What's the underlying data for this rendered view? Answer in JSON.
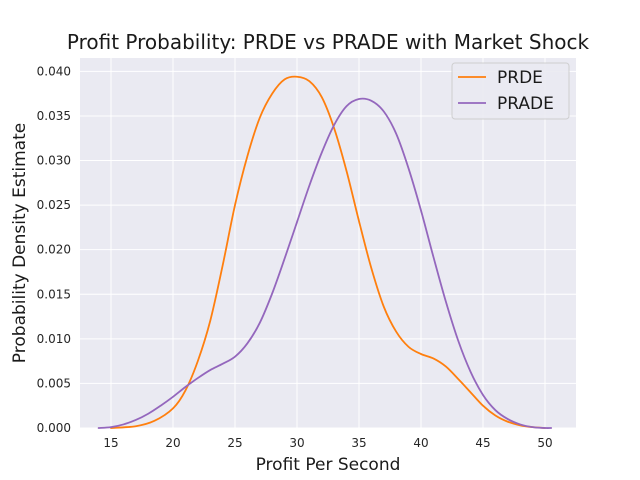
{
  "chart_data": {
    "type": "line",
    "title": "Profit Probability: PRDE vs PRADE with Market Shock",
    "xlabel": "Profit Per Second",
    "ylabel": "Probability Density Estimate",
    "xlim": [
      12.5,
      52.5
    ],
    "ylim": [
      0,
      0.0415
    ],
    "xticks": [
      "15",
      "20",
      "25",
      "30",
      "35",
      "40",
      "45",
      "50"
    ],
    "yticks": [
      "0.000",
      "0.005",
      "0.010",
      "0.015",
      "0.020",
      "0.025",
      "0.030",
      "0.035",
      "0.040"
    ],
    "grid": true,
    "legend_position": "top-right",
    "series": [
      {
        "name": "PRDE",
        "color": "#ff7f0e",
        "x": [
          15.0,
          17.0,
          18.5,
          20.0,
          21.0,
          22.0,
          23.0,
          24.0,
          25.0,
          26.0,
          27.0,
          28.0,
          29.0,
          30.0,
          31.0,
          32.0,
          33.0,
          34.0,
          35.0,
          36.0,
          37.0,
          38.0,
          39.0,
          40.0,
          41.0,
          42.0,
          43.0,
          44.0,
          45.0,
          46.0,
          47.0,
          48.0,
          49.0,
          50.0
        ],
        "y": [
          0.0,
          0.0002,
          0.0008,
          0.0022,
          0.0042,
          0.0075,
          0.012,
          0.0182,
          0.025,
          0.0305,
          0.0348,
          0.0375,
          0.0391,
          0.0394,
          0.0389,
          0.0371,
          0.0336,
          0.0288,
          0.0232,
          0.0179,
          0.0136,
          0.0108,
          0.0091,
          0.0083,
          0.0078,
          0.0069,
          0.0055,
          0.004,
          0.0025,
          0.0014,
          0.0007,
          0.0003,
          0.0001,
          0.0
        ]
      },
      {
        "name": "PRADE",
        "color": "#9467bd",
        "x": [
          14.0,
          15.0,
          16.0,
          17.0,
          18.0,
          19.0,
          20.0,
          21.0,
          22.0,
          23.0,
          24.0,
          25.0,
          26.0,
          27.0,
          28.0,
          29.0,
          30.0,
          31.0,
          32.0,
          33.0,
          34.0,
          35.0,
          36.0,
          37.0,
          38.0,
          39.0,
          40.0,
          41.0,
          42.0,
          43.0,
          44.0,
          45.0,
          46.0,
          47.0,
          48.0,
          49.0,
          50.0,
          50.5
        ],
        "y": [
          0.0,
          0.0001,
          0.0004,
          0.0009,
          0.0016,
          0.0025,
          0.0035,
          0.0046,
          0.0056,
          0.0065,
          0.0072,
          0.008,
          0.0095,
          0.0118,
          0.0151,
          0.019,
          0.0231,
          0.0272,
          0.0309,
          0.034,
          0.0361,
          0.0369,
          0.0367,
          0.0355,
          0.033,
          0.0291,
          0.0244,
          0.0192,
          0.0142,
          0.0098,
          0.0063,
          0.0037,
          0.002,
          0.001,
          0.0004,
          0.0001,
          0.0,
          0.0
        ]
      }
    ]
  }
}
